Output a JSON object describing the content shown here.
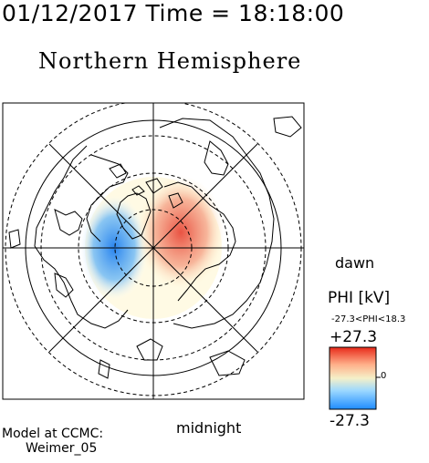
{
  "header": {
    "time_title": "01/12/2017 Time = 18:18:00",
    "hemisphere": "Northern Hemisphere"
  },
  "labels": {
    "dawn": "dawn",
    "midnight": "midnight",
    "model_line1": "Model at CCMC:",
    "model_line2": "Weimer_05"
  },
  "colorbar": {
    "title": "PHI [kV]",
    "range_text": "-27.3<PHI<18.3",
    "max_label": "+27.3",
    "min_label": "-27.3",
    "zero_label": "0",
    "colors": [
      "#1e8cff",
      "#9cd8ff",
      "#f5f0c8",
      "#ffb08a",
      "#e82a1a"
    ]
  },
  "map": {
    "colors": {
      "negative_cell": "#3c9cf0",
      "positive_cell": "#f05a3c",
      "coast": "#000000"
    }
  }
}
